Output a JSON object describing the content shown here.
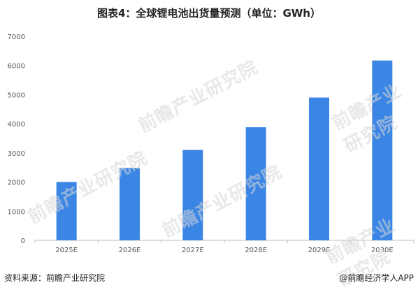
{
  "title": "图表4：全球锂电池出货量预测（单位：GWh）",
  "footer": {
    "source": "资料来源：前瞻产业研究院",
    "brand": "@前瞻经济学人APP"
  },
  "watermark": "前瞻产业研究院",
  "colors": {
    "bar": "#3b86e4",
    "axis": "#bfbfbf",
    "tick_text": "#555555"
  },
  "chart_data": {
    "type": "bar",
    "title": "图表4：全球锂电池出货量预测（单位：GWh）",
    "categories": [
      "2025E",
      "2026E",
      "2027E",
      "2028E",
      "2029E",
      "2030E"
    ],
    "values": [
      2000,
      2480,
      3100,
      3880,
      4900,
      6170
    ],
    "yticks": [
      0,
      1000,
      2000,
      3000,
      4000,
      5000,
      6000,
      7000
    ],
    "ylim": [
      0,
      7000
    ],
    "xlabel": "",
    "ylabel": "",
    "grid": false,
    "legend": "none"
  }
}
